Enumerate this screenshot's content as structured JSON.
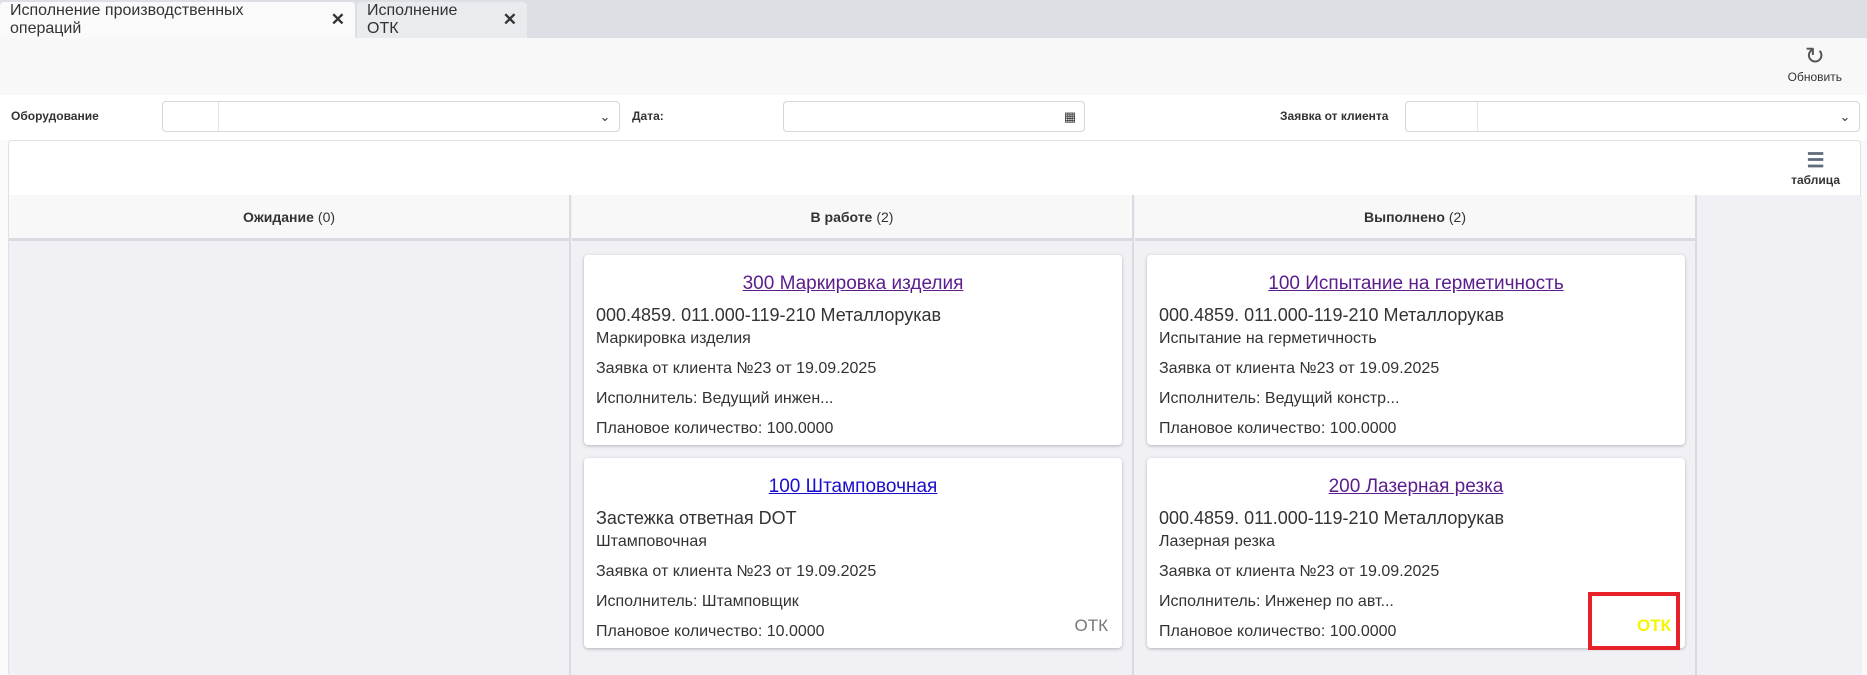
{
  "tabs": [
    {
      "label": "Исполнение производственных операций",
      "active": true
    },
    {
      "label": "Исполнение ОТК",
      "active": false
    }
  ],
  "toolbar": {
    "refresh_label": "Обновить",
    "refresh_icon": "refresh-icon"
  },
  "filters": {
    "equipment_label": "Оборудование",
    "equipment_value": "",
    "date_label": "Дата:",
    "date_value": "",
    "order_label": "Заявка от клиента",
    "order_value": ""
  },
  "board": {
    "table_view_label": "таблица",
    "table_icon": "list-icon",
    "columns": [
      {
        "title": "Ожидание",
        "count": "(0)",
        "cards": []
      },
      {
        "title": "В работе",
        "count": "(2)",
        "cards": [
          {
            "title": "300 Маркировка изделия",
            "product": "000.4859. 011.000-119-210 Металлорукав",
            "operation": "Маркировка изделия",
            "order": "Заявка от клиента №23 от 19.09.2025",
            "executor": "Исполнитель: Ведущий инжен...",
            "qty": "Плановое количество: 100.0000",
            "otk": "",
            "link_color": "#5b1c8c"
          },
          {
            "title": "100 Штамповочная",
            "product": "Застежка ответная DOT",
            "operation": "Штамповочная",
            "order": "Заявка от клиента №23 от 19.09.2025",
            "executor": "Исполнитель: Штамповщик",
            "qty": "Плановое количество: 10.0000",
            "otk": "ОТК",
            "otk_color": "#777777",
            "link_color": "#1a0dcc"
          }
        ]
      },
      {
        "title": "Выполнено",
        "count": "(2)",
        "cards": [
          {
            "title": "100 Испытание на герметичность",
            "product": "000.4859. 011.000-119-210 Металлорукав",
            "operation": "Испытание на герметичность",
            "order": "Заявка от клиента №23 от 19.09.2025",
            "executor": "Исполнитель: Ведущий констр...",
            "qty": "Плановое количество: 100.0000",
            "otk": "",
            "link_color": "#5b1c8c"
          },
          {
            "title": "200 Лазерная резка",
            "product": "000.4859. 011.000-119-210 Металлорукав",
            "operation": "Лазерная резка",
            "order": "Заявка от клиента №23 от 19.09.2025",
            "executor": "Исполнитель: Инженер по авт...",
            "qty": "Плановое количество: 100.0000",
            "otk": "ОТК",
            "otk_color": "#f5f500",
            "link_color": "#5b1c8c"
          }
        ]
      }
    ]
  },
  "highlight_color": "#e8202a"
}
